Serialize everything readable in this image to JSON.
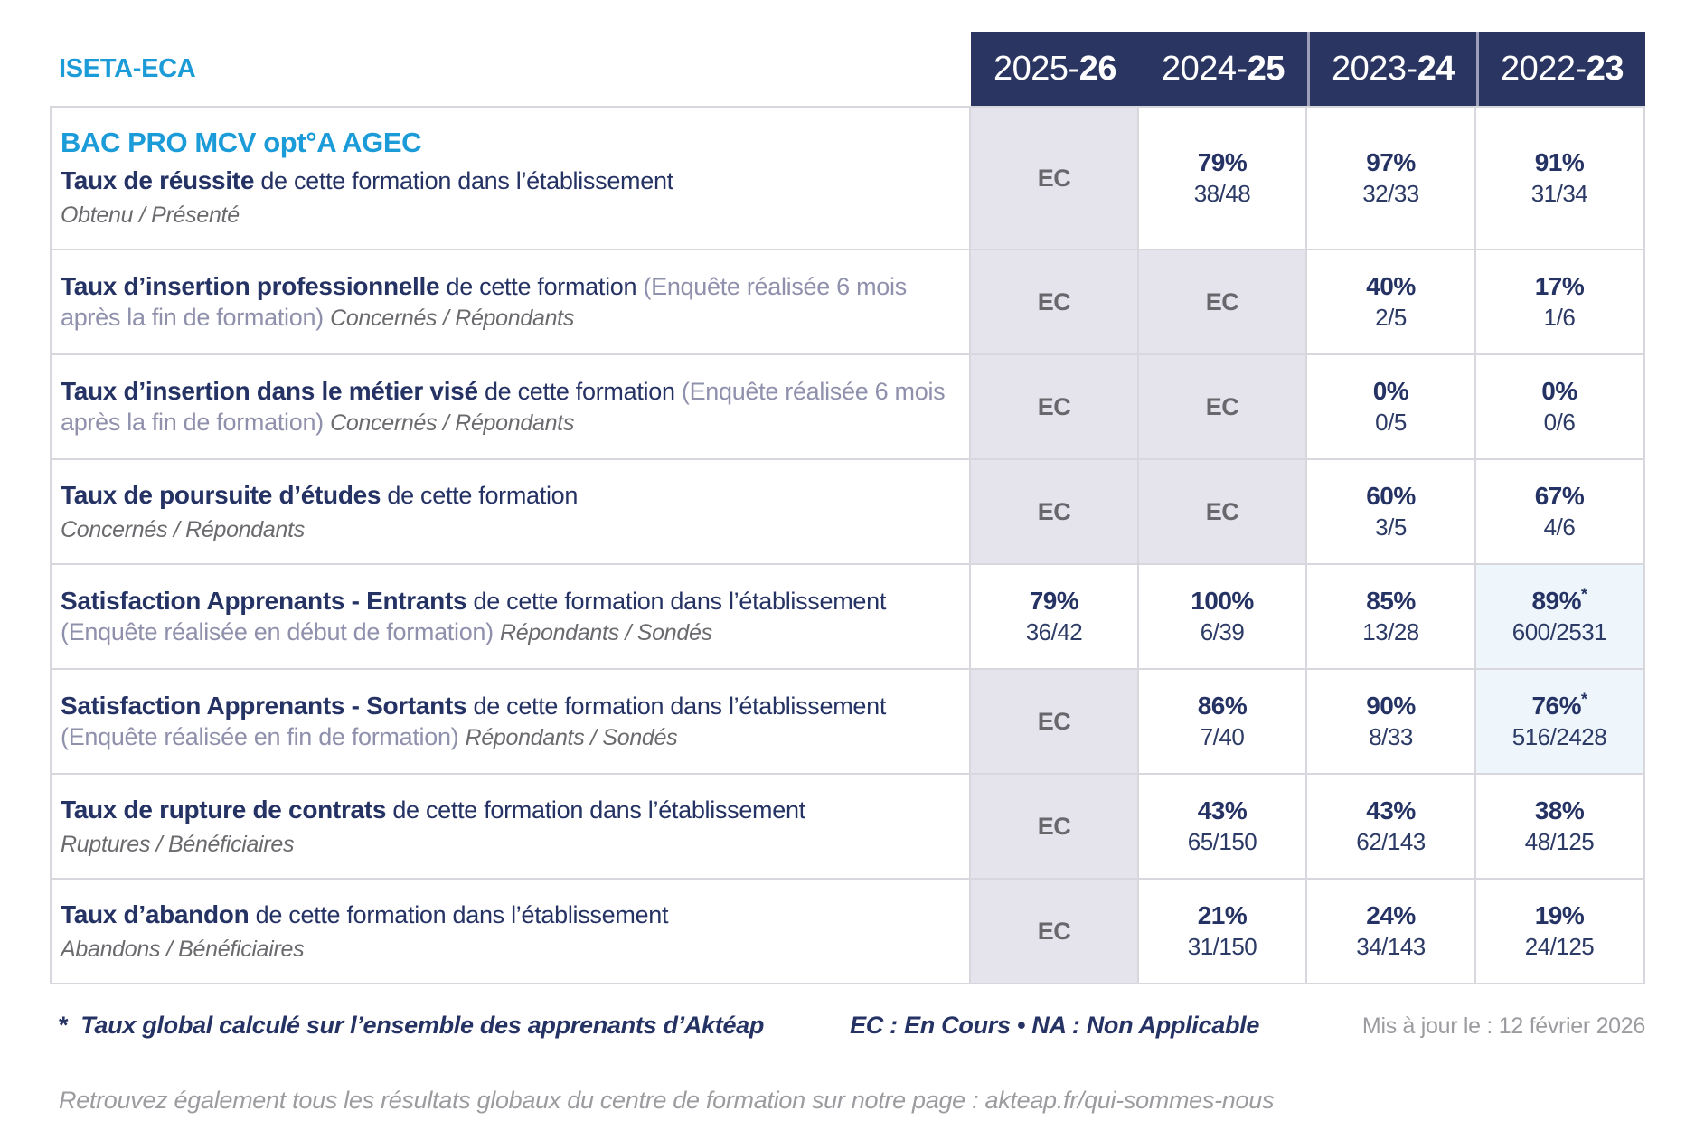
{
  "org": "ISETA-ECA",
  "program": "BAC PRO MCV opt°A AGEC",
  "years": [
    {
      "pre": "2025-",
      "bold": "26"
    },
    {
      "pre": "2024-",
      "bold": "25"
    },
    {
      "pre": "2023-",
      "bold": "24"
    },
    {
      "pre": "2022-",
      "bold": "23"
    }
  ],
  "rows": [
    {
      "title": "Taux de réussite",
      "desc": "de cette formation dans l’établissement",
      "paren": "",
      "subtitle": "Obtenu / Présenté",
      "cells": [
        {
          "text": "EC"
        },
        {
          "pct": "79%",
          "frac": "38/48"
        },
        {
          "pct": "97%",
          "frac": "32/33"
        },
        {
          "pct": "91%",
          "frac": "31/34"
        }
      ]
    },
    {
      "title": "Taux d’insertion professionnelle",
      "desc": "de cette formation",
      "paren": "(Enquête réalisée 6 mois après la fin de formation)",
      "subtitle": "Concernés / Répondants",
      "cells": [
        {
          "text": "EC"
        },
        {
          "text": "EC"
        },
        {
          "pct": "40%",
          "frac": "2/5"
        },
        {
          "pct": "17%",
          "frac": "1/6"
        }
      ]
    },
    {
      "title": "Taux d’insertion dans le métier visé",
      "desc": "de cette formation",
      "paren": "(Enquête réalisée 6 mois après la fin de formation)",
      "subtitle": "Concernés / Répondants",
      "cells": [
        {
          "text": "EC"
        },
        {
          "text": "EC"
        },
        {
          "pct": "0%",
          "frac": "0/5"
        },
        {
          "pct": "0%",
          "frac": "0/6"
        }
      ]
    },
    {
      "title": "Taux de poursuite d’études",
      "desc": "de cette formation",
      "paren": "",
      "subtitle": "Concernés / Répondants",
      "cells": [
        {
          "text": "EC"
        },
        {
          "text": "EC"
        },
        {
          "pct": "60%",
          "frac": "3/5"
        },
        {
          "pct": "67%",
          "frac": "4/6"
        }
      ]
    },
    {
      "title": "Satisfaction Apprenants - Entrants",
      "desc": "de cette formation dans l’établissement",
      "paren": "(Enquête réalisée en début de formation)",
      "subtitle": "Répondants / Sondés",
      "cells": [
        {
          "pct": "79%",
          "frac": "36/42"
        },
        {
          "pct": "100%",
          "frac": "6/39"
        },
        {
          "pct": "85%",
          "frac": "13/28"
        },
        {
          "pct": "89%",
          "star": "*",
          "frac": "600/2531"
        }
      ]
    },
    {
      "title": "Satisfaction Apprenants - Sortants",
      "desc": "de cette formation dans l’établissement",
      "paren": "(Enquête réalisée en fin de formation)",
      "subtitle": "Répondants / Sondés",
      "cells": [
        {
          "text": "EC"
        },
        {
          "pct": "86%",
          "frac": "7/40"
        },
        {
          "pct": "90%",
          "frac": "8/33"
        },
        {
          "pct": "76%",
          "star": "*",
          "frac": "516/2428"
        }
      ]
    },
    {
      "title": "Taux de rupture de contrats",
      "desc": "de cette formation dans l’établissement",
      "paren": "",
      "subtitle": "Ruptures / Bénéficiaires",
      "cells": [
        {
          "text": "EC"
        },
        {
          "pct": "43%",
          "frac": "65/150"
        },
        {
          "pct": "43%",
          "frac": "62/143"
        },
        {
          "pct": "38%",
          "frac": "48/125"
        }
      ]
    },
    {
      "title": "Taux d’abandon",
      "desc": "de cette formation dans l’établissement",
      "paren": "",
      "subtitle": "Abandons / Bénéficiaires",
      "cells": [
        {
          "text": "EC"
        },
        {
          "pct": "21%",
          "frac": "31/150"
        },
        {
          "pct": "24%",
          "frac": "34/143"
        },
        {
          "pct": "19%",
          "frac": "24/125"
        }
      ]
    }
  ],
  "footer": {
    "asterisk": "*",
    "note": "Taux global calculé sur l’ensemble des apprenants d’Aktéap",
    "legend": "EC : En Cours  •  NA : Non Applicable",
    "updated": "Mis à jour le : 12 février 2026",
    "bottom": "Retrouvez également tous les résultats globaux du centre de formation sur notre page : akteap.fr/qui-sommes-nous"
  },
  "colors": {
    "navy_header": "#2a3561",
    "navy_text": "#253264",
    "accent_blue": "#1b9bd8",
    "lavender_cell": "#e5e4ed",
    "lightblue_cell": "#eef5fb",
    "gray_text": "#6b6b6f",
    "border": "#d7d7dd"
  }
}
